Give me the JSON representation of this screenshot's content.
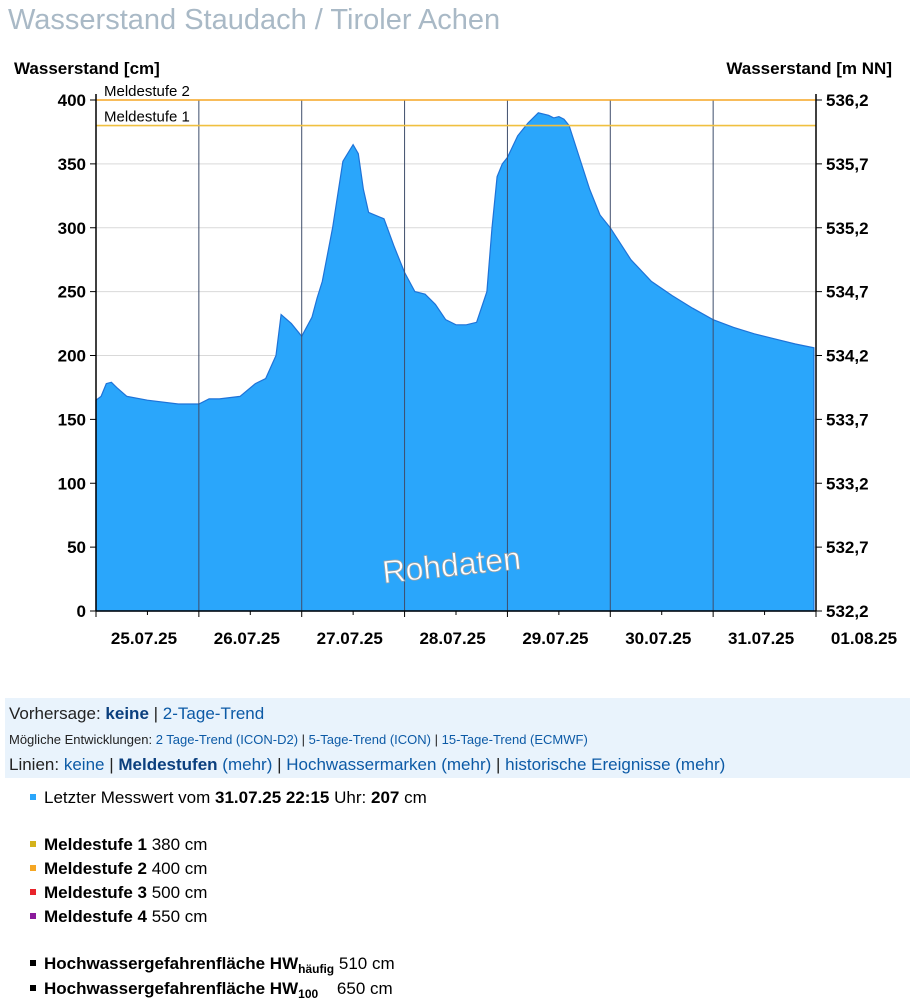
{
  "title": "Wasserstand Staudach / Tiroler Achen",
  "chart_data": {
    "type": "area",
    "ylabel_left": "Wasserstand [cm]",
    "ylabel_right": "Wasserstand [m NN]",
    "ylim": [
      0,
      400
    ],
    "yticks_left": [
      "0",
      "50",
      "100",
      "150",
      "200",
      "250",
      "300",
      "350",
      "400"
    ],
    "yticks_right": [
      "532,2",
      "532,7",
      "533,2",
      "533,7",
      "534,2",
      "534,7",
      "535,2",
      "535,7",
      "536,2"
    ],
    "xlim": [
      0,
      7
    ],
    "xtick_labels": [
      "25.07.25",
      "26.07.25",
      "27.07.25",
      "28.07.25",
      "29.07.25",
      "30.07.25",
      "31.07.25",
      "01.08.25"
    ],
    "grid": true,
    "watermark": "Rohdaten",
    "area_color": "#2aa6fb",
    "series": [
      {
        "values_x": [
          0,
          0.05,
          0.1,
          0.15,
          0.2,
          0.3,
          0.5,
          0.8,
          1.0,
          1.1,
          1.2,
          1.4,
          1.55,
          1.65,
          1.75,
          1.8,
          1.9,
          2.0,
          2.1,
          2.15,
          2.2,
          2.3,
          2.4,
          2.5,
          2.55,
          2.6,
          2.65,
          2.8,
          2.9,
          3.0,
          3.1,
          3.2,
          3.3,
          3.4,
          3.5,
          3.6,
          3.7,
          3.8,
          3.85,
          3.9,
          3.95,
          4.0,
          4.1,
          4.2,
          4.3,
          4.4,
          4.45,
          4.5,
          4.55,
          4.6,
          4.7,
          4.8,
          4.9,
          5.0,
          5.2,
          5.4,
          5.6,
          5.8,
          6.0,
          6.2,
          6.4,
          6.6,
          6.8,
          6.98
        ],
        "values_y": [
          165,
          168,
          178,
          179,
          175,
          168,
          165,
          162,
          162,
          166,
          166,
          168,
          178,
          182,
          200,
          232,
          225,
          215,
          230,
          245,
          258,
          300,
          352,
          365,
          358,
          330,
          312,
          307,
          285,
          265,
          250,
          248,
          240,
          228,
          224,
          224,
          226,
          250,
          300,
          340,
          350,
          355,
          372,
          382,
          390,
          388,
          386,
          387,
          385,
          380,
          355,
          330,
          310,
          300,
          275,
          258,
          247,
          237,
          228,
          222,
          217,
          213,
          209,
          206
        ]
      }
    ],
    "thresholds": [
      {
        "label": "Meldestufe 2",
        "value": 400,
        "color": "#f5a623"
      },
      {
        "label": "Meldestufe 1",
        "value": 380,
        "color": "#f0c040"
      }
    ]
  },
  "controls": {
    "forecast_label": "Vorhersage:",
    "forecast_selected": "keine",
    "forecast_sep": "|",
    "forecast_alt": "2-Tage-Trend",
    "dev_label": "Mögliche Entwicklungen:",
    "dev_links": [
      "2 Tage-Trend (ICON-D2)",
      "5-Tage-Trend (ICON)",
      "15-Tage-Trend (ECMWF)"
    ],
    "dev_sep": "|",
    "lines_label": "Linien:",
    "lines_none": "keine",
    "lines_sep": "|",
    "lines_meldestufen": "Meldestufen",
    "lines_more": "(mehr)",
    "lines_hwmarken": "Hochwassermarken",
    "lines_hist": "historische Ereignisse"
  },
  "info": {
    "last_prefix": "Letzter Messwert vom",
    "last_datetime": "31.07.25 22:15",
    "last_mid": "Uhr:",
    "last_value": "207",
    "last_unit": "cm",
    "last_color": "#2aa6fb",
    "meldestufen": [
      {
        "label": "Meldestufe 1",
        "value": "380 cm",
        "color": "#d4b21b"
      },
      {
        "label": "Meldestufe 2",
        "value": "400 cm",
        "color": "#f5a623"
      },
      {
        "label": "Meldestufe 3",
        "value": "500 cm",
        "color": "#e8232a"
      },
      {
        "label": "Meldestufe 4",
        "value": "550 cm",
        "color": "#8a1a9b"
      }
    ],
    "hw_label": "Hochwassergefahrenfläche HW",
    "hw1_sub": "häufig",
    "hw1_value": "510 cm",
    "hw2_sub": "100",
    "hw2_value": "650 cm",
    "hw_color": "#000000"
  }
}
